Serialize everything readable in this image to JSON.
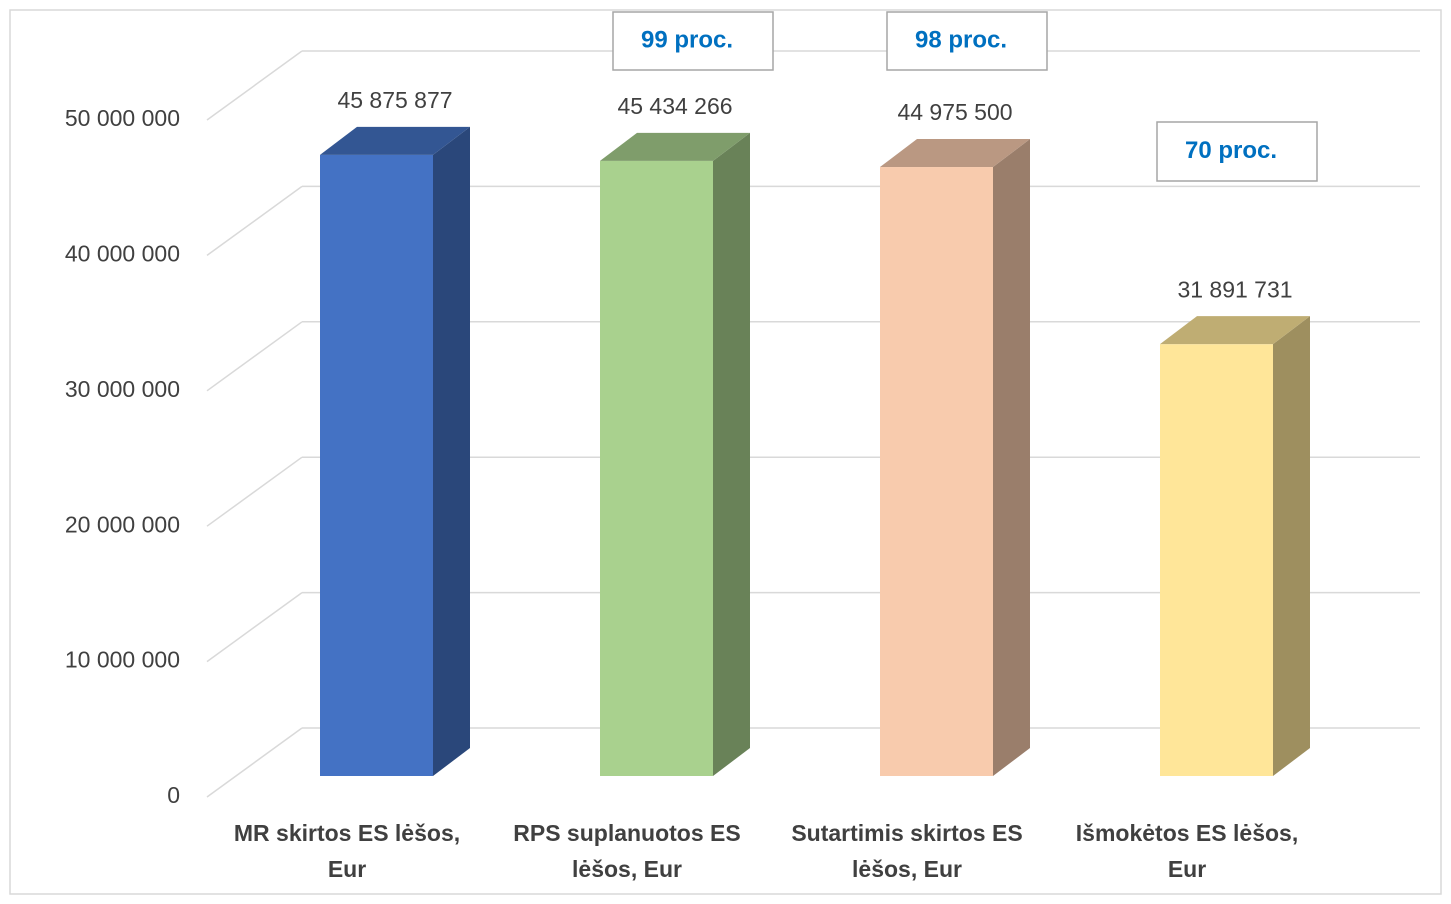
{
  "chart_data": {
    "type": "bar3d",
    "categories": [
      [
        "MR skirtos ES lėšos,",
        "Eur"
      ],
      [
        "RPS suplanuotos ES",
        "lėšos, Eur"
      ],
      [
        "Sutartimis skirtos ES",
        "lėšos, Eur"
      ],
      [
        "Išmokėtos ES lėšos,",
        "Eur"
      ]
    ],
    "values": [
      45875877,
      45434266,
      44975500,
      31891731
    ],
    "value_labels": [
      "45 875 877",
      "45 434 266",
      "44 975 500",
      "31 891 731"
    ],
    "colors": [
      "#4472c4",
      "#a9d18e",
      "#f8cbad",
      "#ffe699"
    ],
    "annotations": [
      "99 proc.",
      "98 proc.",
      "70 proc."
    ],
    "ylim": [
      0,
      50000000
    ],
    "yticks": [
      0,
      {
        "value": 10000000,
        "label": "10 000 000"
      },
      {
        "value": 20000000,
        "label": "20 000 000"
      },
      {
        "value": 30000000,
        "label": "30 000 000"
      },
      {
        "value": 40000000,
        "label": "40 000 000"
      },
      {
        "value": 50000000,
        "label": "50 000 000"
      }
    ],
    "grid": true
  }
}
